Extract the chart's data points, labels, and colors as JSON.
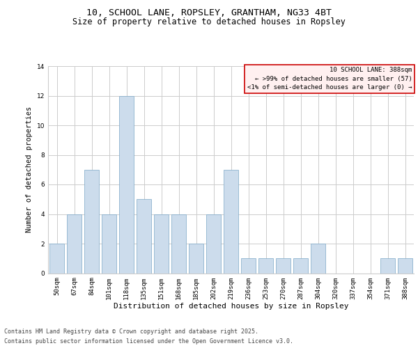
{
  "title1": "10, SCHOOL LANE, ROPSLEY, GRANTHAM, NG33 4BT",
  "title2": "Size of property relative to detached houses in Ropsley",
  "xlabel": "Distribution of detached houses by size in Ropsley",
  "ylabel": "Number of detached properties",
  "categories": [
    "50sqm",
    "67sqm",
    "84sqm",
    "101sqm",
    "118sqm",
    "135sqm",
    "151sqm",
    "168sqm",
    "185sqm",
    "202sqm",
    "219sqm",
    "236sqm",
    "253sqm",
    "270sqm",
    "287sqm",
    "304sqm",
    "320sqm",
    "337sqm",
    "354sqm",
    "371sqm",
    "388sqm"
  ],
  "values": [
    2,
    4,
    7,
    4,
    12,
    5,
    4,
    4,
    2,
    4,
    7,
    1,
    1,
    1,
    1,
    2,
    0,
    0,
    0,
    1,
    1
  ],
  "bar_color": "#ccdcec",
  "bar_edge_color": "#7ba7c7",
  "legend_title": "10 SCHOOL LANE: 388sqm",
  "legend_line1": "← >99% of detached houses are smaller (57)",
  "legend_line2": "<1% of semi-detached houses are larger (0) →",
  "legend_box_facecolor": "#fff0f0",
  "legend_box_edge": "#cc0000",
  "footer1": "Contains HM Land Registry data © Crown copyright and database right 2025.",
  "footer2": "Contains public sector information licensed under the Open Government Licence v3.0.",
  "ylim": [
    0,
    14
  ],
  "yticks": [
    0,
    2,
    4,
    6,
    8,
    10,
    12,
    14
  ],
  "grid_color": "#cccccc",
  "bg_color": "#ffffff",
  "title1_fontsize": 9.5,
  "title2_fontsize": 8.5,
  "xlabel_fontsize": 8,
  "ylabel_fontsize": 7.5,
  "tick_fontsize": 6.5,
  "legend_fontsize": 6.5,
  "footer_fontsize": 6.0
}
